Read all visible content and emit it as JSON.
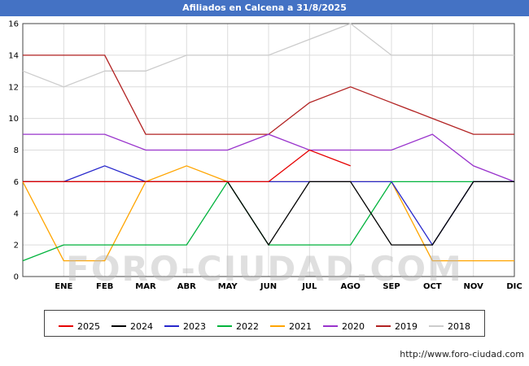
{
  "header": {
    "title": "Afiliados en Calcena a 31/8/2025",
    "background": "#4472c4"
  },
  "watermark": "FORO-CIUDAD.COM",
  "footer": {
    "url": "http://www.foro-ciudad.com"
  },
  "chart_data": {
    "type": "line",
    "title": "Afiliados en Calcena a 31/8/2025",
    "months": [
      "ENE",
      "FEB",
      "MAR",
      "ABR",
      "MAY",
      "JUN",
      "JUL",
      "AGO",
      "SEP",
      "OCT",
      "NOV",
      "DIC"
    ],
    "x_edge_point": true,
    "ylim": [
      0,
      16
    ],
    "ytick_step": 2,
    "grid": true,
    "legend_position": "bottom",
    "series": [
      {
        "name": "2025",
        "color": "#e60000",
        "values": [
          6,
          6,
          6,
          6,
          6,
          6,
          6,
          8,
          7,
          null,
          null,
          null,
          null
        ]
      },
      {
        "name": "2024",
        "color": "#000000",
        "values": [
          6,
          6,
          6,
          6,
          6,
          6,
          2,
          6,
          6,
          2,
          2,
          6,
          6
        ]
      },
      {
        "name": "2023",
        "color": "#2727cc",
        "values": [
          6,
          6,
          7,
          6,
          6,
          6,
          6,
          6,
          6,
          6,
          2,
          6,
          6
        ]
      },
      {
        "name": "2022",
        "color": "#00b33c",
        "values": [
          1,
          2,
          2,
          2,
          2,
          6,
          2,
          2,
          2,
          6,
          6,
          6,
          6
        ]
      },
      {
        "name": "2021",
        "color": "#ffa500",
        "values": [
          6,
          1,
          1,
          6,
          7,
          6,
          6,
          6,
          6,
          6,
          1,
          1,
          1
        ]
      },
      {
        "name": "2020",
        "color": "#9933cc",
        "values": [
          9,
          9,
          9,
          8,
          8,
          8,
          9,
          8,
          8,
          8,
          9,
          7,
          6
        ]
      },
      {
        "name": "2019",
        "color": "#b22222",
        "values": [
          14,
          14,
          14,
          9,
          9,
          9,
          9,
          11,
          12,
          11,
          10,
          9,
          9
        ]
      },
      {
        "name": "2018",
        "color": "#cccccc",
        "values": [
          13,
          12,
          13,
          13,
          14,
          14,
          14,
          15,
          16,
          14,
          14,
          14,
          14
        ]
      }
    ]
  }
}
